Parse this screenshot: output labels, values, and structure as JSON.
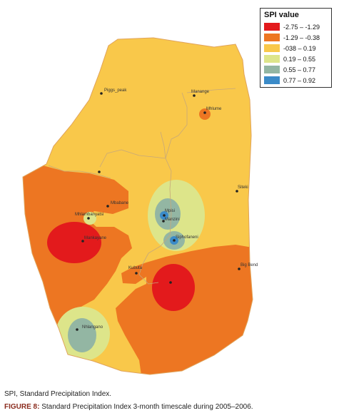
{
  "legend": {
    "title": "SPI value",
    "classes": [
      {
        "label": "-2.75 – -1.29",
        "color": "#e31a1c"
      },
      {
        "label": "-1.29 – -0.38",
        "color": "#ed7622"
      },
      {
        "label": "-038 – 0.19",
        "color": "#f9c84a"
      },
      {
        "label": "0.19 – 0.55",
        "color": "#dde58a"
      },
      {
        "label": "0.55 – 0.77",
        "color": "#93b6a3"
      },
      {
        "label": "0.77 – 0.92",
        "color": "#3b8bc8"
      }
    ]
  },
  "places": [
    {
      "name": "Piggs_peak"
    },
    {
      "name": "Manange"
    },
    {
      "name": "Mhlume"
    },
    {
      "name": "Siteki"
    },
    {
      "name": "Mbabane"
    },
    {
      "name": "Mhlambanyatsi"
    },
    {
      "name": "Mpisi"
    },
    {
      "name": "Manzini"
    },
    {
      "name": "Siphofaneni"
    },
    {
      "name": "Kubuta"
    },
    {
      "name": "Big Bend"
    },
    {
      "name": "Nhlangano"
    },
    {
      "name": "Mankayane"
    }
  ],
  "caption": {
    "abbreviation": "SPI, Standard Precipitation Index.",
    "figure_prefix": "FIGURE 8:",
    "figure_text": " Standard Precipitation Index 3-month timescale during 2005–2006."
  }
}
